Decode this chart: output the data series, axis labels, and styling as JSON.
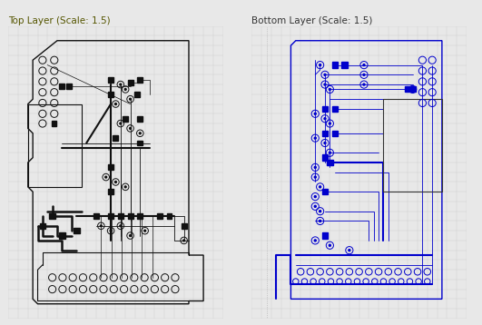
{
  "title_left": "Top Layer (Scale: 1.5)",
  "title_right": "Bottom Layer (Scale: 1.5)",
  "bg_color": "#e8e8e8",
  "panel_bg": "#ffffff",
  "left_color": "#111111",
  "right_color": "#0000cc",
  "title_color_left": "#555500",
  "title_color_right": "#333333",
  "title_fontsize": 7.5,
  "grid_color": "#cccccc",
  "border_color": "#888888"
}
